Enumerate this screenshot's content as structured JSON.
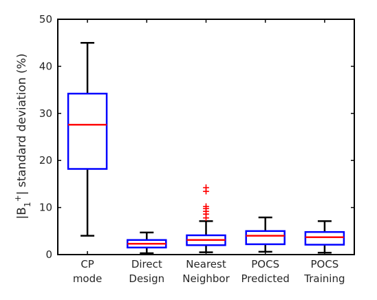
{
  "chart_data": {
    "type": "boxplot",
    "title": "",
    "xlabel": "",
    "ylabel": "|B",
    "ylabel_sub": "1",
    "ylabel_sup": "+",
    "ylabel_rest": "| standard deviation (%)",
    "ylim": [
      0,
      50
    ],
    "yticks": [
      "0",
      "10",
      "20",
      "30",
      "40",
      "50"
    ],
    "grid": false,
    "colors": {
      "box": "#0000ff",
      "median": "#ff0000",
      "whisker": "#000000",
      "outlier": "#ff0000"
    },
    "categories": [
      {
        "line1": "CP",
        "line2": "mode"
      },
      {
        "line1": "Direct",
        "line2": "Design"
      },
      {
        "line1": "Nearest",
        "line2": "Neighbor"
      },
      {
        "line1": "POCS",
        "line2": "Predicted"
      },
      {
        "line1": "POCS",
        "line2": "Training"
      }
    ],
    "boxes": [
      {
        "whisker_low": 4.0,
        "q1": 18.2,
        "median": 27.6,
        "q3": 34.2,
        "whisker_high": 45.0,
        "outliers": []
      },
      {
        "whisker_low": 0.3,
        "q1": 1.5,
        "median": 2.3,
        "q3": 3.1,
        "whisker_high": 4.7,
        "outliers": []
      },
      {
        "whisker_low": 0.5,
        "q1": 2.0,
        "median": 3.1,
        "q3": 4.1,
        "whisker_high": 7.1,
        "outliers": [
          7.9,
          8.7,
          9.3,
          9.9,
          10.3,
          13.5,
          14.3
        ]
      },
      {
        "whisker_low": 0.6,
        "q1": 2.2,
        "median": 4.0,
        "q3": 5.0,
        "whisker_high": 7.9,
        "outliers": []
      },
      {
        "whisker_low": 0.4,
        "q1": 2.1,
        "median": 3.7,
        "q3": 4.8,
        "whisker_high": 7.1,
        "outliers": []
      }
    ],
    "outlier_symbol": "+"
  }
}
